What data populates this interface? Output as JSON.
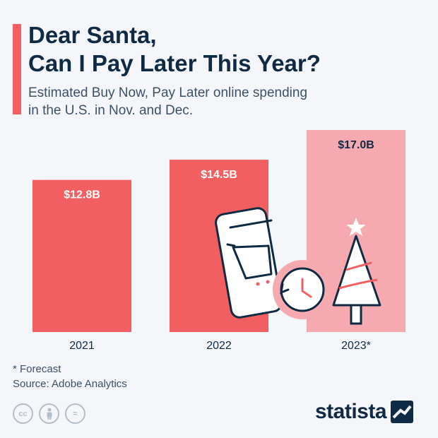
{
  "header": {
    "title": "Dear Santa,\nCan I Pay Later This Year?",
    "subtitle": "Estimated Buy Now, Pay Later online spending\nin the U.S. in Nov. and Dec."
  },
  "colors": {
    "bar_actual": "#f25f61",
    "bar_forecast": "#f6aab0",
    "label_light": "#ffffff",
    "label_dark": "#0f2a44",
    "icon_stroke": "#0f2a44"
  },
  "chart_data": {
    "type": "bar",
    "categories": [
      "2021",
      "2022",
      "2023*"
    ],
    "values": [
      12.8,
      14.5,
      17.0
    ],
    "value_labels": [
      "$12.8B",
      "$14.5B",
      "$17.0B"
    ],
    "forecast": [
      false,
      false,
      true
    ],
    "unit": "billion U.S. dollars",
    "ylim": [
      0,
      17.0
    ],
    "grid": false,
    "legend": "none",
    "title": "Dear Santa, Can I Pay Later This Year?",
    "xlabel": "",
    "ylabel": ""
  },
  "footer": {
    "note": "* Forecast",
    "source": "Source: Adobe Analytics",
    "license_icons": [
      "cc-icon",
      "by-person-icon",
      "nd-equals-icon"
    ],
    "license_labels": [
      "cc",
      "",
      "="
    ],
    "brand": "statista"
  }
}
